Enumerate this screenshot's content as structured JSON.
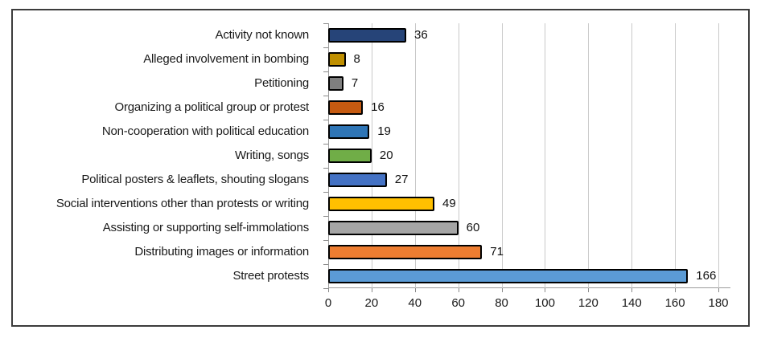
{
  "figure": {
    "background_color": "#ffffff",
    "frame_border_color": "#3c3c3c",
    "gridline_color": "#c9c9c9",
    "axis_color": "#9b9b9b",
    "text_color": "#1a1a1a"
  },
  "chart_data": {
    "type": "bar",
    "orientation": "horizontal",
    "title": "",
    "xlabel": "",
    "ylabel": "",
    "categories": [
      "Activity not known",
      "Alleged involvement in bombing",
      "Petitioning",
      "Organizing a political group or protest",
      "Non-cooperation with political education",
      "Writing, songs",
      "Political posters & leaflets, shouting slogans",
      "Social interventions other than protests or writing",
      "Assisting or supporting self-immolations",
      "Distributing images or information",
      "Street protests"
    ],
    "values": [
      36,
      8,
      7,
      16,
      19,
      20,
      27,
      49,
      60,
      71,
      166
    ],
    "bar_colors": [
      "#264478",
      "#BF8F00",
      "#7F7F7F",
      "#C55A11",
      "#2E75B6",
      "#70AD47",
      "#4472C4",
      "#FFC000",
      "#A5A5A5",
      "#ED7D31",
      "#5B9BD5"
    ],
    "bar_border_color": "#000000",
    "xlim": [
      0,
      180
    ],
    "x_ticks": [
      0,
      20,
      40,
      60,
      80,
      100,
      120,
      140,
      160,
      180
    ],
    "grid": "vertical-gridlines-on",
    "legend": "none",
    "data_labels": "shown-at-bar-end"
  }
}
